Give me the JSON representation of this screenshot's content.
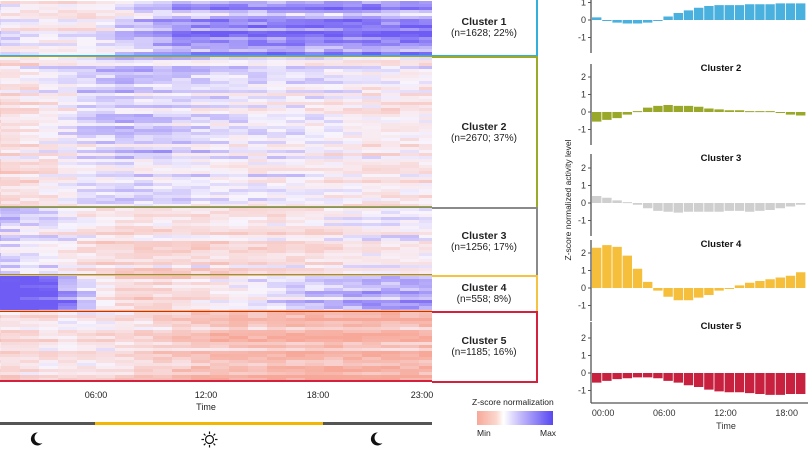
{
  "chart_data": [
    {
      "type": "heatmap",
      "xlabel": "Time",
      "x_tick_labels": [
        "06:00",
        "12:00",
        "18:00",
        "23:00"
      ],
      "colorbar": {
        "title": "Z-score normalization",
        "min_label": "Min",
        "max_label": "Max",
        "min_color": "#f7a898",
        "max_color": "#5848f2"
      },
      "clusters": [
        {
          "title": "Cluster 1",
          "subtitle": "(n=1628; 22%)",
          "n": 1628,
          "percent": 22,
          "color": "#35aedd"
        },
        {
          "title": "Cluster 2",
          "subtitle": "(n=2670; 37%)",
          "n": 2670,
          "percent": 37,
          "color": "#9aab2a"
        },
        {
          "title": "Cluster 3",
          "subtitle": "(n=1256; 17%)",
          "n": 1256,
          "percent": 17,
          "color": "#8a8a8a"
        },
        {
          "title": "Cluster 4",
          "subtitle": "(n=558; 8%)",
          "n": 558,
          "percent": 8,
          "color": "#f5c242"
        },
        {
          "title": "Cluster 5",
          "subtitle": "(n=1185; 16%)",
          "n": 1185,
          "percent": 16,
          "color": "#d4213d"
        }
      ],
      "day_night": {
        "night_color": "#555555",
        "day_color": "#f2b705",
        "day_start": "06:00",
        "day_end": "18:00",
        "icons": [
          "moon-icon",
          "sun-icon",
          "moon-icon"
        ]
      }
    },
    {
      "type": "bar",
      "ylabel": "Z-score normalized activity level",
      "xlabel": "Time",
      "x_tick_labels": [
        "00:00",
        "06:00",
        "12:00",
        "18:00"
      ],
      "y_ticks": [
        "-1",
        "0",
        "1",
        "2"
      ],
      "ylim": [
        -1.6,
        2.6
      ],
      "hours": [
        0,
        1,
        2,
        3,
        4,
        5,
        6,
        7,
        8,
        9,
        10,
        11,
        12,
        13,
        14,
        15,
        16,
        17,
        18,
        19,
        20
      ],
      "series": [
        {
          "name": "Cluster 1",
          "color": "#4ab0de",
          "values": [
            0.15,
            -0.05,
            -0.15,
            -0.2,
            -0.2,
            -0.15,
            -0.02,
            0.2,
            0.4,
            0.55,
            0.7,
            0.8,
            0.85,
            0.85,
            0.85,
            0.9,
            0.9,
            0.9,
            0.95,
            0.95,
            0.95
          ]
        },
        {
          "name": "Cluster 2",
          "color": "#9aa82a",
          "values": [
            -0.55,
            -0.45,
            -0.35,
            -0.15,
            0.05,
            0.25,
            0.35,
            0.4,
            0.35,
            0.35,
            0.3,
            0.2,
            0.15,
            0.1,
            0.1,
            0.05,
            0.05,
            0.05,
            -0.05,
            -0.15,
            -0.2
          ]
        },
        {
          "name": "Cluster 3",
          "color": "#cfcfcf",
          "values": [
            0.4,
            0.3,
            0.15,
            0.05,
            -0.1,
            -0.3,
            -0.45,
            -0.5,
            -0.55,
            -0.5,
            -0.5,
            -0.5,
            -0.5,
            -0.45,
            -0.45,
            -0.5,
            -0.45,
            -0.4,
            -0.3,
            -0.2,
            -0.1
          ]
        },
        {
          "name": "Cluster 4",
          "color": "#f5bf3c",
          "values": [
            2.3,
            2.45,
            2.35,
            1.85,
            1.1,
            0.35,
            -0.15,
            -0.5,
            -0.7,
            -0.7,
            -0.55,
            -0.4,
            -0.15,
            -0.05,
            0.15,
            0.3,
            0.4,
            0.5,
            0.6,
            0.7,
            0.9
          ]
        },
        {
          "name": "Cluster 5",
          "color": "#c8203f",
          "values": [
            -0.55,
            -0.45,
            -0.35,
            -0.3,
            -0.25,
            -0.25,
            -0.3,
            -0.45,
            -0.55,
            -0.7,
            -0.8,
            -0.95,
            -1.05,
            -1.1,
            -1.1,
            -1.15,
            -1.2,
            -1.25,
            -1.25,
            -1.2,
            -1.2
          ]
        }
      ]
    }
  ]
}
